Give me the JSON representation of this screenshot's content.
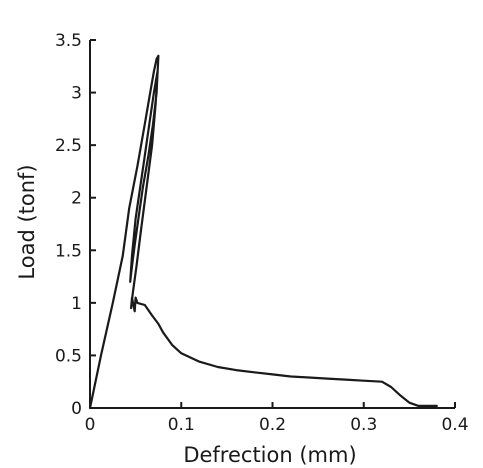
{
  "chart_data": {
    "type": "line",
    "title": "",
    "xlabel": "Defrection (mm)",
    "ylabel": "Load (tonf)",
    "xlim": [
      0,
      0.4
    ],
    "ylim": [
      0,
      3.5
    ],
    "x_ticks": [
      0,
      0.1,
      0.2,
      0.3,
      0.4
    ],
    "x_tick_labels": [
      "0",
      "0.1",
      "0.2",
      "0.3",
      "0.4"
    ],
    "y_ticks": [
      0,
      0.5,
      1,
      1.5,
      2,
      2.5,
      3,
      3.5
    ],
    "y_tick_labels": [
      "0",
      "0.5",
      "1",
      "1.5",
      "2",
      "2.5",
      "3",
      "3.5"
    ],
    "grid": false,
    "legend": "none",
    "series": [
      {
        "color": "#1a1a1a",
        "x": [
          0,
          0.012,
          0.025,
          0.036,
          0.043,
          0.052,
          0.06,
          0.066,
          0.07,
          0.073,
          0.075,
          0.073,
          0.069,
          0.064,
          0.058,
          0.053,
          0.049,
          0.046,
          0.044,
          0.046,
          0.05,
          0.055,
          0.06,
          0.065,
          0.07,
          0.074,
          0.072,
          0.068,
          0.062,
          0.056,
          0.051,
          0.047,
          0.045,
          0.046,
          0.049,
          0.05,
          0.052,
          0.06,
          0.068,
          0.075,
          0.08,
          0.09,
          0.1,
          0.12,
          0.14,
          0.16,
          0.18,
          0.2,
          0.22,
          0.24,
          0.26,
          0.28,
          0.3,
          0.32,
          0.33,
          0.34,
          0.35,
          0.36,
          0.38
        ],
        "y": [
          0,
          0.5,
          1.0,
          1.45,
          1.9,
          2.3,
          2.7,
          3.0,
          3.2,
          3.32,
          3.35,
          3.0,
          2.7,
          2.4,
          2.1,
          1.8,
          1.55,
          1.35,
          1.2,
          1.45,
          1.8,
          2.1,
          2.4,
          2.7,
          3.0,
          3.2,
          2.9,
          2.5,
          2.1,
          1.7,
          1.35,
          1.1,
          0.95,
          1.05,
          0.92,
          1.05,
          1.0,
          0.98,
          0.88,
          0.8,
          0.72,
          0.6,
          0.52,
          0.44,
          0.39,
          0.36,
          0.34,
          0.32,
          0.3,
          0.29,
          0.28,
          0.27,
          0.26,
          0.25,
          0.2,
          0.12,
          0.05,
          0.02,
          0.02
        ]
      }
    ]
  }
}
